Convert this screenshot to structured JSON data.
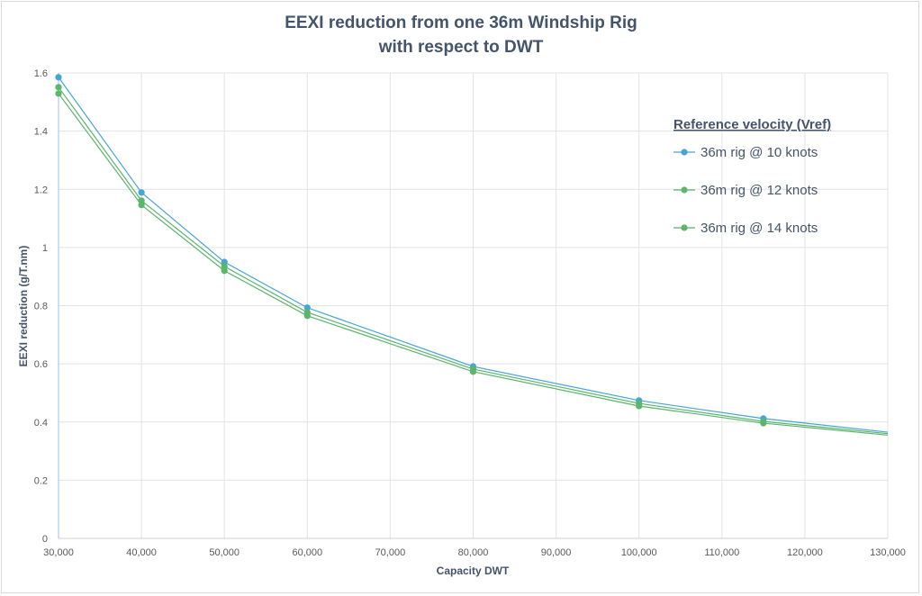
{
  "chart_data": {
    "type": "line",
    "title_line1": "EEXI reduction from one 36m Windship Rig",
    "title_line2": "with respect to DWT",
    "xlabel": "Capacity DWT",
    "ylabel": "EEXI reduction (g/T.nm)",
    "xlim": [
      30000,
      130000
    ],
    "ylim": [
      0,
      1.6
    ],
    "xticks": [
      30000,
      40000,
      50000,
      60000,
      70000,
      80000,
      90000,
      100000,
      110000,
      120000,
      130000
    ],
    "xtick_labels": [
      "30,000",
      "40,000",
      "50,000",
      "60,000",
      "70,000",
      "80,000",
      "90,000",
      "100,000",
      "110,000",
      "120,000",
      "130,000"
    ],
    "yticks": [
      0,
      0.2,
      0.4,
      0.6,
      0.8,
      1,
      1.2,
      1.4,
      1.6
    ],
    "ytick_labels": [
      "0",
      "0.2",
      "0.4",
      "0.6",
      "0.8",
      "1",
      "1.2",
      "1.4",
      "1.6"
    ],
    "grid": true,
    "legend_title": "Reference velocity (Vref)",
    "legend_placement": "top-right",
    "x": [
      30000,
      40000,
      50000,
      60000,
      80000,
      100000,
      115000,
      130000
    ],
    "series": [
      {
        "name": "36m rig @ 10 knots",
        "color": "#45a5d6",
        "values": [
          1.585,
          1.189,
          0.95,
          0.793,
          0.591,
          0.474,
          0.412,
          0.365
        ]
      },
      {
        "name": "36m rig @ 12 knots",
        "color": "#5bb56b",
        "values": [
          1.551,
          1.161,
          0.935,
          0.777,
          0.582,
          0.464,
          0.402,
          0.36
        ]
      },
      {
        "name": "36m rig @ 14 knots",
        "color": "#5bb56b",
        "values": [
          1.529,
          1.146,
          0.92,
          0.765,
          0.573,
          0.455,
          0.396,
          0.355
        ]
      }
    ]
  }
}
